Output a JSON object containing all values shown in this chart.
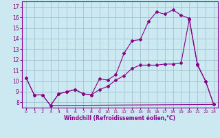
{
  "xlabel": "Windchill (Refroidissement éolien,°C)",
  "bg_color": "#cce8f0",
  "line_color": "#880088",
  "grid_color": "#99bbcc",
  "x_ticks": [
    0,
    1,
    2,
    3,
    4,
    5,
    6,
    7,
    8,
    9,
    10,
    11,
    12,
    13,
    14,
    15,
    16,
    17,
    18,
    19,
    20,
    21,
    22,
    23
  ],
  "y_ticks": [
    8,
    9,
    10,
    11,
    12,
    13,
    14,
    15,
    16,
    17
  ],
  "x_min": -0.5,
  "x_max": 23.5,
  "y_min": 7.5,
  "y_max": 17.5,
  "series1_x": [
    0,
    1,
    2,
    3,
    4,
    5,
    6,
    7,
    8,
    9,
    10,
    11,
    12,
    13,
    14,
    15,
    16,
    17,
    18,
    19,
    20,
    21,
    22,
    23
  ],
  "series1_y": [
    10.3,
    8.7,
    8.7,
    7.7,
    8.8,
    9.0,
    9.2,
    8.8,
    8.7,
    10.2,
    10.1,
    10.6,
    12.6,
    13.8,
    13.9,
    15.6,
    16.5,
    16.3,
    16.7,
    16.2,
    15.9,
    11.6,
    10.0,
    7.8
  ],
  "series2_x": [
    0,
    1,
    2,
    3,
    4,
    5,
    6,
    7,
    8,
    9,
    10,
    11,
    12,
    13,
    14,
    15,
    16,
    17,
    18,
    19,
    20,
    21,
    22,
    23
  ],
  "series2_y": [
    10.3,
    8.7,
    8.7,
    7.7,
    8.8,
    9.0,
    9.2,
    8.8,
    8.7,
    9.2,
    9.5,
    10.1,
    10.5,
    11.2,
    11.5,
    11.5,
    11.5,
    11.6,
    11.6,
    11.7,
    15.8,
    11.5,
    10.0,
    7.8
  ],
  "series3_x": [
    3,
    23
  ],
  "series3_y": [
    7.7,
    7.8
  ]
}
